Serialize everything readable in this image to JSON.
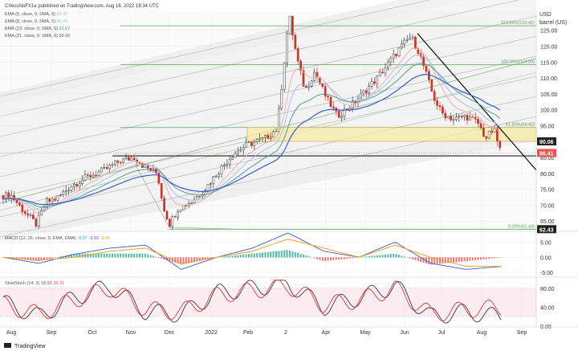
{
  "header": {
    "publisher": "CVecchioFX1e published on TradingView.com, Aug 16, 2022 18:34 UTC"
  },
  "indicators": {
    "ema": [
      {
        "label": "EMA (5, close, 0, SMA, 5)",
        "value": "89.45",
        "color": "#f0a8a8"
      },
      {
        "label": "EMA (8, close, 0, SMA, 5)",
        "value": "90.49",
        "color": "#a8b8e8"
      },
      {
        "label": "EMA (13, close, 0, SMA, 5)",
        "value": "91.67",
        "color": "#3d9a8a"
      },
      {
        "label": "EMA (21, close, 0, SMA, 5)",
        "value": "93.60",
        "color": "#3b5bc9"
      }
    ],
    "macd": {
      "label": "MACD (12, 26, close, 9, EMA, EMA)",
      "values": [
        "-0.07",
        "-3.33",
        "-3.34"
      ]
    },
    "stoch": {
      "label": "SlowStoch (14, 3)",
      "values": [
        "18.52",
        "38.31"
      ]
    }
  },
  "axis": {
    "unit_line1": "USD",
    "unit_line2": "barrel (US)",
    "price_ticks": [
      "125.00",
      "120.00",
      "115.00",
      "110.00",
      "105.00",
      "100.00",
      "95.00",
      "90.00",
      "85.00",
      "80.00",
      "75.00",
      "70.00",
      "65.00"
    ],
    "macd_ticks": [
      "5.00",
      "0.00",
      "-5.00"
    ],
    "stoch_ticks": [
      "80.00",
      "40.00",
      "0.00"
    ],
    "x_ticks": [
      "Aug",
      "Sep",
      "Oct",
      "Nov",
      "Dec",
      "2022",
      "Feb",
      "2",
      "Apr",
      "May",
      "Jun",
      "Jul",
      "Aug",
      "Sep"
    ]
  },
  "price_labels": [
    {
      "text": "90.06",
      "value": 90.06,
      "bg": "#222222",
      "fg": "#ffffff"
    },
    {
      "text": "86.41",
      "value": 86.41,
      "bg": "#ef5350",
      "fg": "#ffffff"
    },
    {
      "text": "62.43",
      "value": 62.43,
      "bg": "#222222",
      "fg": "#ffffff"
    }
  ],
  "fib_levels": [
    {
      "label": "123.60%(126.42)",
      "value": 126.42
    },
    {
      "label": "100.00%(114.20)",
      "value": 114.2
    },
    {
      "label": "61.80%(94.42)",
      "value": 94.42
    },
    {
      "label": "0.00%(62.43)",
      "value": 62.43
    }
  ],
  "footer": {
    "brand": "TradingView"
  },
  "chart_data": [
    {
      "type": "candlestick",
      "title": "",
      "ylabel": "USD barrel (US)",
      "ylim": [
        62,
        131
      ],
      "x": [
        "Aug",
        "Sep",
        "Oct",
        "Nov",
        "Dec",
        "2022",
        "Feb",
        "2",
        "Apr",
        "May",
        "Jun",
        "Jul",
        "Aug",
        "Sep"
      ],
      "key_points": [
        {
          "x": "Aug",
          "close": 73
        },
        {
          "x": "Aug",
          "close": 64
        },
        {
          "x": "Sep",
          "close": 72
        },
        {
          "x": "Oct",
          "close": 80
        },
        {
          "x": "Nov",
          "close": 85
        },
        {
          "x": "Dec",
          "close": 64
        },
        {
          "x": "Dec",
          "close": 72
        },
        {
          "x": "2022",
          "close": 78
        },
        {
          "x": "Feb",
          "close": 90
        },
        {
          "x": "2",
          "close": 95
        },
        {
          "x": "2",
          "close": 130
        },
        {
          "x": "Apr",
          "close": 100
        },
        {
          "x": "May",
          "close": 107
        },
        {
          "x": "Jun",
          "close": 123
        },
        {
          "x": "Jul",
          "close": 100
        },
        {
          "x": "Aug",
          "close": 90
        },
        {
          "x": "Aug",
          "close": 86.41
        }
      ]
    },
    {
      "type": "line",
      "title": "",
      "ylim": [
        -6,
        8
      ],
      "series": [
        {
          "name": "MACD",
          "values": [
            0,
            -2,
            1,
            3,
            4,
            -4,
            0,
            3,
            8,
            2,
            0,
            5,
            -2,
            -4,
            -3
          ]
        },
        {
          "name": "Signal",
          "values": [
            0,
            -1,
            0,
            2,
            3,
            -2,
            0,
            2,
            6,
            3,
            0,
            4,
            0,
            -3,
            -3
          ]
        }
      ]
    },
    {
      "type": "line",
      "title": "",
      "ylim": [
        0,
        100
      ],
      "series": [
        {
          "name": "%K",
          "values": [
            50,
            20,
            60,
            85,
            30,
            25,
            70,
            80,
            90,
            40,
            60,
            85,
            20,
            30,
            18.52
          ]
        },
        {
          "name": "%D",
          "values": [
            45,
            25,
            55,
            80,
            35,
            30,
            65,
            75,
            85,
            45,
            55,
            80,
            25,
            35,
            38.31
          ]
        }
      ]
    }
  ]
}
